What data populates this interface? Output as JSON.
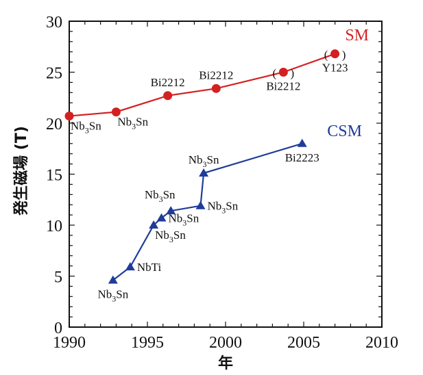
{
  "chart_data": {
    "type": "line",
    "title": "",
    "xlabel": "年",
    "ylabel": "発生磁場 (T)",
    "xlim": [
      1990,
      2010
    ],
    "ylim": [
      0,
      30
    ],
    "xticks": [
      1990,
      1995,
      2000,
      2005,
      2010
    ],
    "yticks": [
      0,
      5,
      10,
      15,
      20,
      25,
      30
    ],
    "x_minor_step": 1,
    "y_minor_step": 1,
    "grid": false,
    "series": [
      {
        "name": "SM",
        "color": "#d42020",
        "marker": "circle",
        "label_position": "top-right",
        "points": [
          {
            "x": 1990.0,
            "y": 20.7,
            "label": "Nb3Sn",
            "label_pos": "below-right",
            "bracketed": false
          },
          {
            "x": 1993.0,
            "y": 21.1,
            "label": "Nb3Sn",
            "label_pos": "below-right",
            "bracketed": false
          },
          {
            "x": 1996.3,
            "y": 22.7,
            "label": "Bi2212",
            "label_pos": "above",
            "bracketed": false
          },
          {
            "x": 1999.4,
            "y": 23.4,
            "label": "Bi2212",
            "label_pos": "above",
            "bracketed": false
          },
          {
            "x": 2003.7,
            "y": 25.0,
            "label": "Bi2212",
            "label_pos": "below",
            "bracketed": true
          },
          {
            "x": 2007.0,
            "y": 26.8,
            "label": "Y123",
            "label_pos": "below",
            "bracketed": true
          }
        ]
      },
      {
        "name": "CSM",
        "color": "#1f3c9a",
        "marker": "triangle",
        "label_position": "center-right",
        "points": [
          {
            "x": 1992.8,
            "y": 4.6,
            "label": "Nb3Sn",
            "label_pos": "below"
          },
          {
            "x": 1993.9,
            "y": 5.9,
            "label": "NbTi",
            "label_pos": "right"
          },
          {
            "x": 1995.4,
            "y": 10.0,
            "label": "Nb3Sn",
            "label_pos": "below-right"
          },
          {
            "x": 1995.9,
            "y": 10.7,
            "label": "Nb3Sn",
            "label_pos": "right"
          },
          {
            "x": 1996.5,
            "y": 11.4,
            "label": "Nb3Sn",
            "label_pos": "above-left"
          },
          {
            "x": 1998.4,
            "y": 11.9,
            "label": "Nb3Sn",
            "label_pos": "right"
          },
          {
            "x": 1998.6,
            "y": 15.1,
            "label": "Nb3Sn",
            "label_pos": "above"
          },
          {
            "x": 2004.9,
            "y": 18.0,
            "label": "Bi2223",
            "label_pos": "below"
          }
        ]
      }
    ]
  }
}
